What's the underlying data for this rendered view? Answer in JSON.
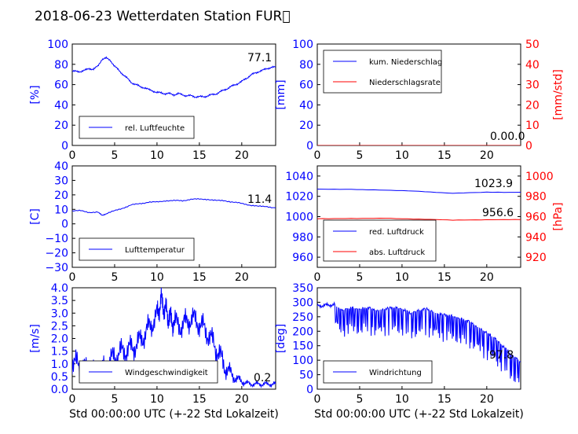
{
  "title": "2018-06-23 Wetterdaten Station FUR\u0000",
  "colors": {
    "blue": "#0000ff",
    "red": "#ff0000",
    "axis": "#000000"
  },
  "chart_data": [
    {
      "id": "humidity",
      "type": "line",
      "ylabel": "[%]",
      "xlabel": "",
      "xlim": [
        0,
        24
      ],
      "ylim": [
        0,
        100
      ],
      "yticks": [
        "0",
        "20",
        "40",
        "60",
        "80",
        "100"
      ],
      "xticks": [
        "0",
        "5",
        "10",
        "15",
        "20"
      ],
      "legend": [
        "rel. Luftfeuchte"
      ],
      "current_value": "77.1",
      "series": [
        {
          "name": "rel. Luftfeuchte",
          "x": [
            0,
            0.5,
            1,
            1.5,
            2,
            2.5,
            3,
            3.5,
            4,
            4.5,
            5,
            5.5,
            6,
            6.5,
            7,
            7.5,
            8,
            8.5,
            9,
            9.5,
            10,
            10.5,
            11,
            11.5,
            12,
            12.5,
            13,
            13.5,
            14,
            14.5,
            15,
            15.5,
            16,
            16.5,
            17,
            17.5,
            18,
            18.5,
            19,
            19.5,
            20,
            20.5,
            21,
            21.5,
            22,
            22.5,
            23,
            23.5,
            24
          ],
          "y": [
            73,
            73,
            73,
            74,
            76,
            75,
            78,
            85,
            86,
            84,
            78,
            74,
            70,
            66,
            62,
            60,
            58,
            57,
            55,
            54,
            52,
            52,
            51,
            51,
            50,
            51,
            50,
            49,
            49,
            48,
            48,
            48,
            49,
            50,
            51,
            53,
            55,
            57,
            59,
            61,
            63,
            66,
            69,
            71,
            73,
            74,
            76,
            77,
            77
          ]
        }
      ]
    },
    {
      "id": "precip",
      "type": "line",
      "ylabel": "[mm]",
      "y2label": "[mm/std]",
      "xlabel": "",
      "xlim": [
        0,
        24
      ],
      "ylim": [
        0,
        100
      ],
      "y2lim": [
        0,
        50
      ],
      "yticks": [
        "0",
        "20",
        "40",
        "60",
        "80",
        "100"
      ],
      "y2ticks": [
        "0",
        "10",
        "20",
        "30",
        "40",
        "50"
      ],
      "xticks": [
        "0",
        "5",
        "10",
        "15",
        "20"
      ],
      "legend": [
        "kum. Niederschlag",
        "Niederschlagsrate"
      ],
      "current_value": "0.00.0",
      "series": [
        {
          "name": "kum. Niederschlag",
          "x": [
            0,
            24
          ],
          "y": [
            0,
            0
          ]
        },
        {
          "name": "Niederschlagsrate",
          "x": [
            0,
            24
          ],
          "y": [
            0,
            0
          ]
        }
      ]
    },
    {
      "id": "temp",
      "type": "line",
      "ylabel": "[C]",
      "xlabel": "",
      "xlim": [
        0,
        24
      ],
      "ylim": [
        -30,
        40
      ],
      "yticks": [
        "−30",
        "−20",
        "−10",
        "0",
        "10",
        "20",
        "30",
        "40"
      ],
      "xticks": [
        "0",
        "5",
        "10",
        "15",
        "20"
      ],
      "legend": [
        "Lufttemperatur"
      ],
      "current_value": "11.4",
      "series": [
        {
          "name": "Lufttemperatur",
          "x": [
            0,
            1,
            2,
            3,
            3.5,
            4,
            5,
            6,
            7,
            8,
            9,
            10,
            11,
            12,
            13,
            14,
            15,
            16,
            17,
            18,
            19,
            20,
            21,
            22,
            23,
            24
          ],
          "y": [
            9,
            9,
            8,
            8,
            6,
            7,
            9,
            11,
            13,
            14,
            15,
            15,
            16,
            16,
            16,
            17,
            17,
            17,
            16,
            16,
            15,
            14,
            13,
            12,
            12,
            11
          ]
        }
      ]
    },
    {
      "id": "pressure",
      "type": "line",
      "ylabel": "",
      "y2label": "[hPa]",
      "xlabel": "",
      "xlim": [
        0,
        24
      ],
      "ylim": [
        950,
        1050
      ],
      "y2lim": [
        910,
        1010
      ],
      "yticks": [
        "960",
        "980",
        "1000",
        "1020",
        "1040"
      ],
      "y2ticks": [
        "920",
        "940",
        "960",
        "980",
        "1000"
      ],
      "xticks": [
        "0",
        "5",
        "10",
        "15",
        "20"
      ],
      "legend": [
        "red. Luftdruck",
        "abs. Luftdruck"
      ],
      "values_shown": [
        "1023.9",
        "956.6"
      ],
      "series": [
        {
          "name": "red. Luftdruck",
          "x": [
            0,
            4,
            8,
            12,
            16,
            20,
            24
          ],
          "y": [
            1027,
            1027,
            1026,
            1025,
            1023,
            1024,
            1024
          ]
        },
        {
          "name": "abs. Luftdruck",
          "x": [
            0,
            4,
            8,
            12,
            16,
            20,
            24
          ],
          "y": [
            958,
            958,
            958.5,
            957.5,
            956.5,
            957,
            957
          ]
        }
      ]
    },
    {
      "id": "wind",
      "type": "line",
      "ylabel": "[m/s]",
      "xlabel": "Std 00:00:00 UTC (+-22 Std Lokalzeit)",
      "xlim": [
        0,
        24
      ],
      "ylim": [
        0,
        4
      ],
      "yticks": [
        "0.0",
        "0.5",
        "1.0",
        "1.5",
        "2.0",
        "2.5",
        "3.0",
        "3.5",
        "4.0"
      ],
      "xticks": [
        "0",
        "5",
        "10",
        "15",
        "20"
      ],
      "legend": [
        "Windgeschwindigkeit"
      ],
      "current_value": "0.2",
      "series": [
        {
          "name": "Windgeschwindigkeit",
          "x": [
            0,
            1,
            2,
            3,
            4,
            5,
            6,
            7,
            8,
            9,
            10,
            10.5,
            11,
            11.5,
            12,
            13,
            14,
            15,
            16,
            17,
            18,
            19,
            20,
            21,
            22,
            23,
            24
          ],
          "y": [
            1.1,
            0.9,
            0.8,
            0.7,
            0.9,
            1.3,
            1.5,
            1.6,
            1.9,
            2.4,
            2.9,
            3.5,
            3.1,
            2.8,
            2.6,
            2.5,
            2.8,
            2.6,
            2.2,
            1.6,
            0.9,
            0.5,
            0.3,
            0.2,
            0.2,
            0.2,
            0.2
          ]
        }
      ]
    },
    {
      "id": "direction",
      "type": "line",
      "ylabel": "[deg]",
      "xlabel": "Std 00:00:00 UTC (+-22 Std Lokalzeit)",
      "xlim": [
        0,
        24
      ],
      "ylim": [
        0,
        360
      ],
      "yticks": [
        "0",
        "50",
        "100",
        "150",
        "200",
        "250",
        "300",
        "350"
      ],
      "xticks": [
        "0",
        "5",
        "10",
        "15",
        "20"
      ],
      "legend": [
        "Windrichtung"
      ],
      "current_value": "97.8",
      "series": [
        {
          "name": "Windrichtung",
          "x": [
            0,
            1,
            2,
            3,
            4,
            5,
            6,
            7,
            8,
            9,
            10,
            11,
            12,
            13,
            14,
            15,
            16,
            17,
            18,
            19,
            20,
            21,
            22,
            23,
            24
          ],
          "y": [
            295,
            298,
            300,
            280,
            290,
            285,
            290,
            280,
            285,
            290,
            285,
            270,
            280,
            285,
            270,
            265,
            260,
            250,
            240,
            220,
            200,
            180,
            150,
            120,
            98
          ]
        }
      ]
    }
  ]
}
